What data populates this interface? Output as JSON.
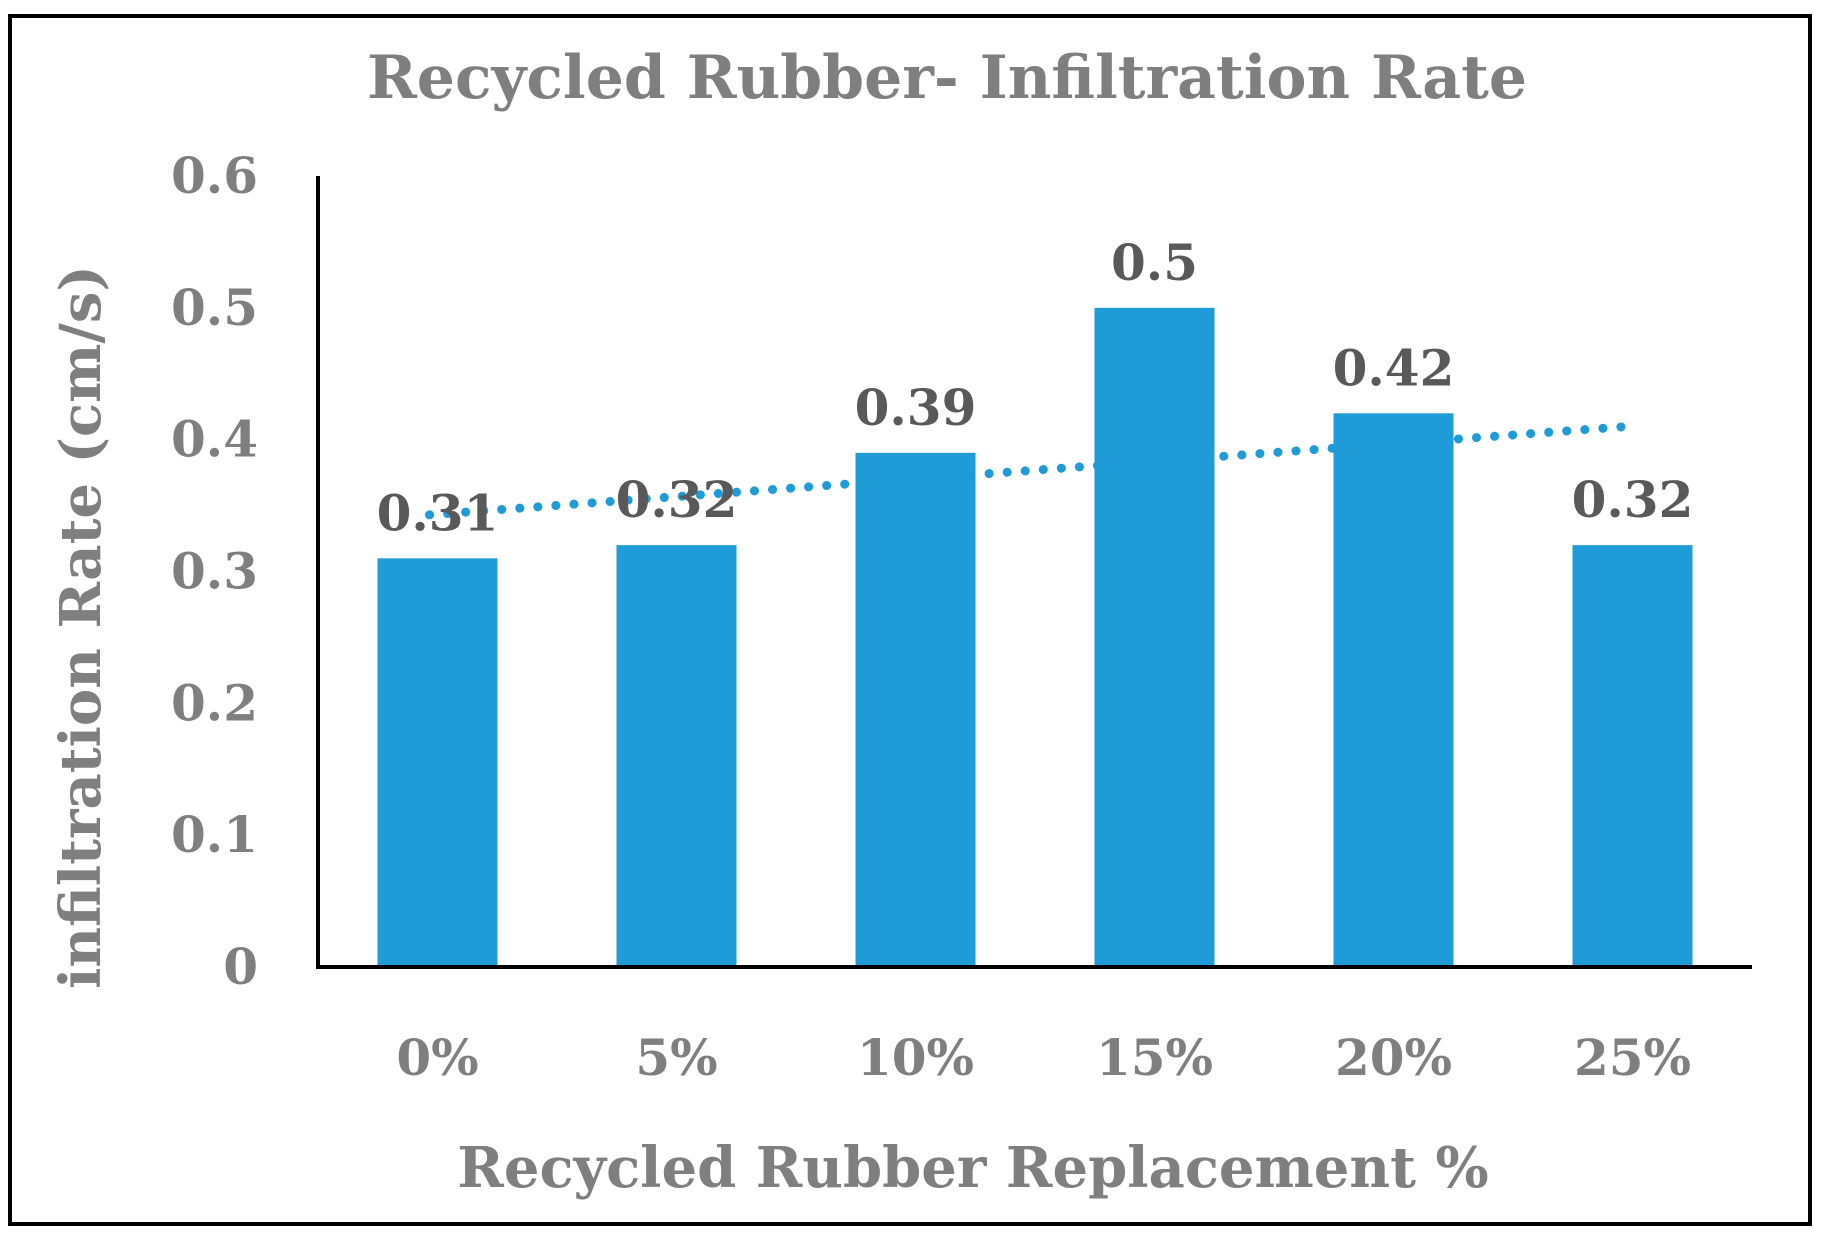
{
  "chart_data": {
    "type": "bar",
    "title": "Recycled Rubber- Infiltration Rate",
    "xlabel": "Recycled Rubber Replacement %",
    "ylabel": "infiltration Rate (cm/s)",
    "categories": [
      "0%",
      "5%",
      "10%",
      "15%",
      "20%",
      "25%"
    ],
    "values": [
      0.31,
      0.32,
      0.39,
      0.5,
      0.42,
      0.32
    ],
    "data_labels": [
      "0.31",
      "0.32",
      "0.39",
      "0.5",
      "0.42",
      "0.32"
    ],
    "ylim": [
      0,
      0.6
    ],
    "yticks": [
      0,
      0.1,
      0.2,
      0.3,
      0.4,
      0.5,
      0.6
    ],
    "ytick_labels": [
      "0",
      "0.1",
      "0.2",
      "0.3",
      "0.4",
      "0.5",
      "0.6"
    ],
    "trendline": {
      "type": "linear",
      "style": "dotted",
      "start_value": 0.343,
      "end_value": 0.41
    },
    "bar_color": "#1f9bd7",
    "grid": false,
    "legend": "none"
  }
}
